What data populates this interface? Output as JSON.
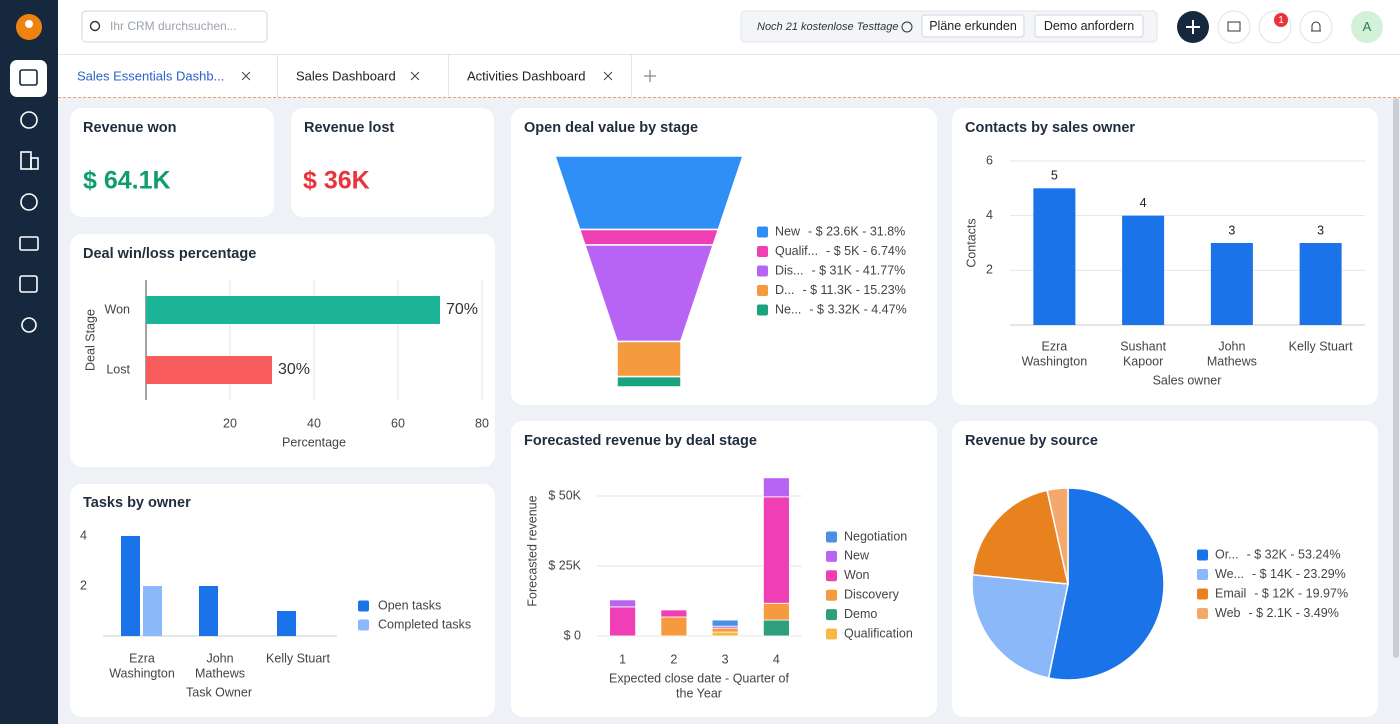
{
  "topbar": {
    "search_placeholder": "Ihr CRM durchsuchen...",
    "trial_text": "Noch 21 kostenlose Testtage",
    "buttons": [
      "Pläne erkunden",
      "Demo anfordern"
    ],
    "notification_count": 1,
    "avatar": "A"
  },
  "tabs": [
    "Sales Essentials Dashb...",
    "Sales Dashboard",
    "Activities Dashboard"
  ],
  "kpis": [
    {
      "title": "Revenue won",
      "value": "$ 64.1K",
      "color": "#0f9d6e"
    },
    {
      "title": "Revenue lost",
      "value": "$ 36K",
      "color": "#e8343a"
    }
  ],
  "chart_data": [
    {
      "type": "hbar",
      "title": "Deal win/loss percentage",
      "categories": [
        "Won",
        "Lost"
      ],
      "values": [
        70,
        30
      ],
      "value_labels": [
        "70%",
        "30%"
      ],
      "colors": [
        "#1db598",
        "#f95c5c"
      ],
      "xlabel": "Percentage",
      "ylabel": "Deal Stage",
      "xlim": [
        0,
        80
      ],
      "xticks": [
        20,
        40,
        60,
        80
      ],
      "grid": true
    },
    {
      "type": "funnel",
      "title": "Open deal value by stage",
      "categories": [
        "New",
        "Qualif...",
        "Dis...",
        "D...",
        "Ne..."
      ],
      "values": [
        31.8,
        6.74,
        41.77,
        15.23,
        4.47
      ],
      "value_labels": [
        "- $ 23.6K - 31.8%",
        "- $ 5K - 6.74%",
        "- $ 31K - 41.77%",
        "- $ 11.3K - 15.23%",
        "- $ 3.32K - 4.47%"
      ],
      "colors": [
        "#2f8ff6",
        "#f03fb5",
        "#b764f5",
        "#f59a3f",
        "#1aa37f"
      ],
      "legend": "right"
    },
    {
      "type": "bar",
      "title": "Contacts by sales owner",
      "categories": [
        [
          "Ezra",
          "Washington"
        ],
        [
          "Sushant",
          "Kapoor"
        ],
        [
          "John",
          "Mathews"
        ],
        [
          "Kelly Stuart"
        ]
      ],
      "values": [
        5,
        4,
        3,
        3
      ],
      "color": "#1a73e8",
      "xlabel": "Sales owner",
      "ylabel": "Contacts",
      "ylim": [
        0,
        6
      ],
      "yticks": [
        2,
        4,
        6
      ],
      "grid": true
    },
    {
      "type": "grouped_bar",
      "title": "Tasks by owner",
      "categories": [
        [
          "Ezra",
          "Washington"
        ],
        [
          "John",
          "Mathews"
        ],
        [
          "Kelly Stuart"
        ]
      ],
      "series": [
        {
          "name": "Open tasks",
          "color": "#1a73e8",
          "values": [
            4,
            2,
            1
          ]
        },
        {
          "name": "Completed tasks",
          "color": "#8ab8f8",
          "values": [
            2,
            0,
            0
          ]
        }
      ],
      "xlabel": "Task Owner",
      "ylim": [
        0,
        4
      ],
      "yticks": [
        2,
        4
      ],
      "grid": false,
      "legend": "right"
    },
    {
      "type": "stacked_bar",
      "title": "Forecasted revenue by deal stage",
      "categories": [
        "1",
        "2",
        "3",
        "4"
      ],
      "series": [
        {
          "name": "Negotiation",
          "color": "#4a90e2",
          "values": [
            0,
            0,
            2200,
            0
          ]
        },
        {
          "name": "New",
          "color": "#b764f5",
          "values": [
            2500,
            0,
            700,
            6800
          ]
        },
        {
          "name": "Won",
          "color": "#f03fb5",
          "values": [
            10400,
            2500,
            0,
            38000
          ]
        },
        {
          "name": "Discovery",
          "color": "#f59a3f",
          "values": [
            0,
            6800,
            1400,
            6000
          ]
        },
        {
          "name": "Demo",
          "color": "#2f9e7c",
          "values": [
            0,
            0,
            0,
            5700
          ]
        },
        {
          "name": "Qualification",
          "color": "#f9b844",
          "values": [
            0,
            0,
            1400,
            0
          ]
        }
      ],
      "xlabel": [
        "Expected close date - Quarter of",
        "the Year"
      ],
      "ylabel": "Forecasted revenue",
      "ylim": [
        0,
        60000
      ],
      "yticks": [
        {
          "value": 0,
          "label": "$ 0"
        },
        {
          "value": 25000,
          "label": "$ 25K"
        },
        {
          "value": 50000,
          "label": "$ 50K"
        }
      ],
      "grid": true,
      "legend": "right"
    },
    {
      "type": "pie",
      "title": "Revenue by source",
      "categories": [
        "Or...",
        "We...",
        "Email",
        "Web"
      ],
      "values": [
        53.24,
        23.29,
        19.97,
        3.49
      ],
      "value_labels": [
        "- $ 32K - 53.24%",
        "- $ 14K - 23.29%",
        "- $ 12K - 19.97%",
        "- $ 2.1K - 3.49%"
      ],
      "colors": [
        "#1a73e8",
        "#8ab8f8",
        "#e8821e",
        "#f4a86a"
      ],
      "legend": "right"
    }
  ]
}
